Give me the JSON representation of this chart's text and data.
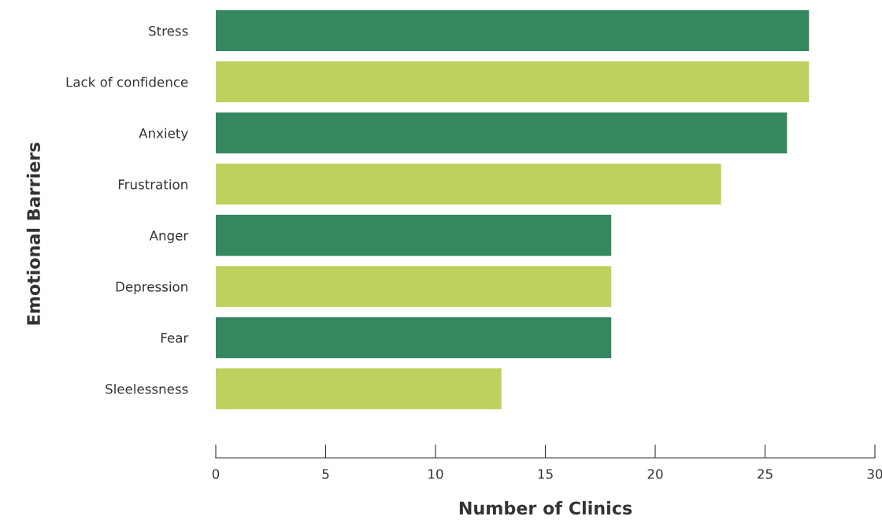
{
  "chart_data": {
    "type": "bar",
    "orientation": "horizontal",
    "xlabel": "Number of Clinics",
    "ylabel": "Emotional Barriers",
    "categories": [
      "Stress",
      "Lack of confidence",
      "Anxiety",
      "Frustration",
      "Anger",
      "Depression",
      "Fear",
      "Sleelessness"
    ],
    "values": [
      27,
      27,
      26,
      23,
      18,
      18,
      18,
      13
    ],
    "colors": [
      "#358760",
      "#c0d05e",
      "#358760",
      "#c0d05e",
      "#358760",
      "#c0d05e",
      "#358760",
      "#c0d05e"
    ],
    "xlim": [
      0,
      30
    ],
    "xticks": [
      0,
      5,
      10,
      15,
      20,
      25,
      30
    ],
    "grid": false,
    "legend": false
  }
}
